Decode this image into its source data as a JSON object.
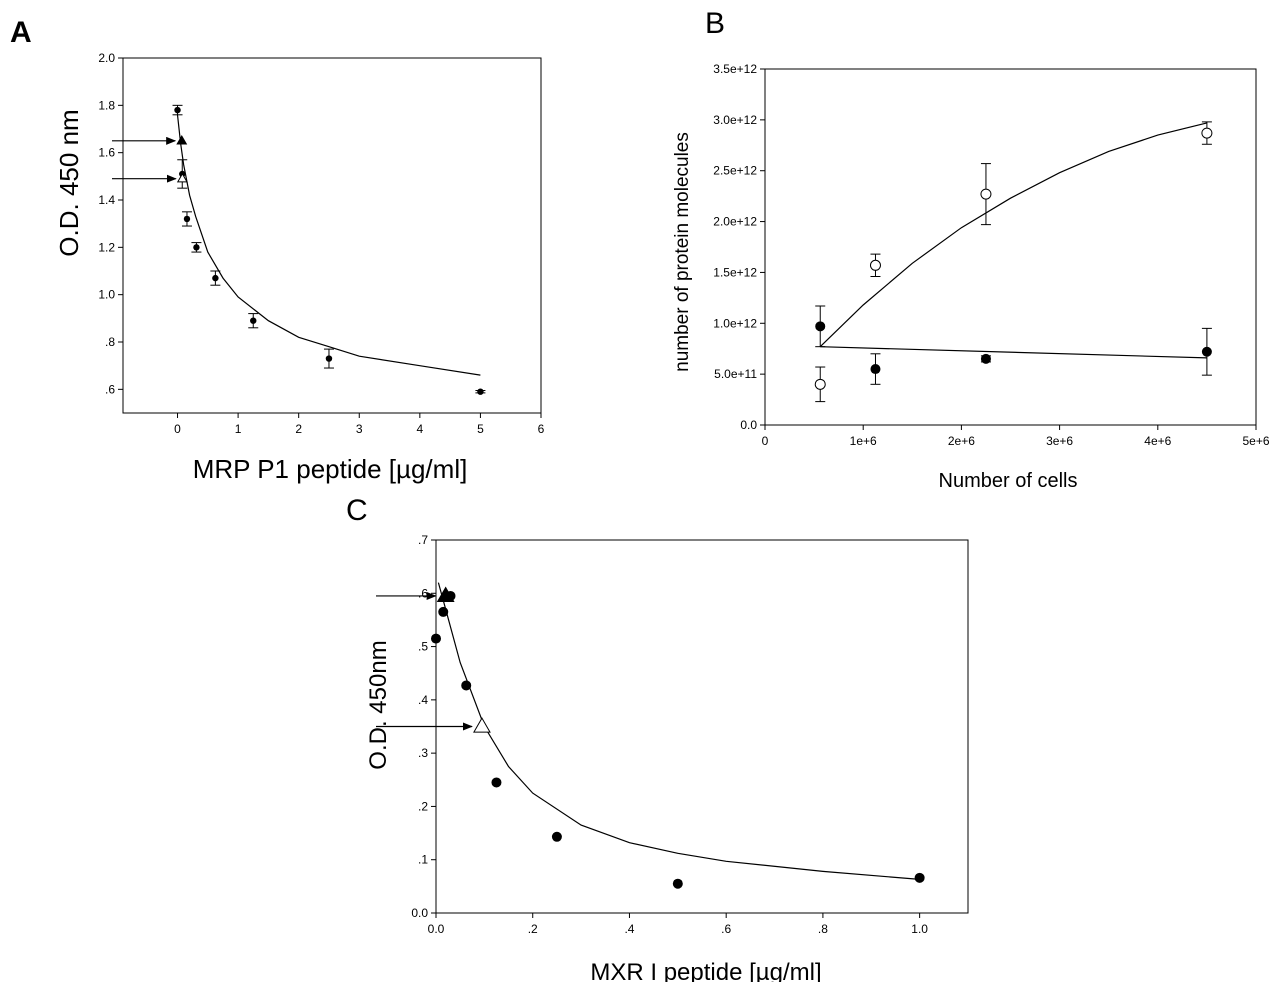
{
  "chart_data": [
    {
      "panel": "A",
      "type": "scatter",
      "xlabel": "MRP P1 peptide [µg/ml]",
      "ylabel": "O.D. 450 nm",
      "xlim": [
        -0.9,
        6
      ],
      "ylim": [
        0.5,
        2.0
      ],
      "xticks": [
        0,
        1,
        2,
        3,
        4,
        5,
        6
      ],
      "xtick_labels": [
        "0",
        "1",
        "2",
        "3",
        "4",
        "5",
        "6"
      ],
      "yticks": [
        0.6,
        0.8,
        1.0,
        1.2,
        1.4,
        1.6,
        1.8,
        2.0
      ],
      "ytick_labels": [
        ".6",
        ".8",
        "1.0",
        "1.2",
        "1.4",
        "1.6",
        "1.8",
        "2.0"
      ],
      "grid": false,
      "series": [
        {
          "marker": "filled-circle",
          "x": [
            0,
            0.078,
            0.156,
            0.312,
            0.625,
            1.25,
            2.5,
            5.0
          ],
          "y": [
            1.78,
            1.51,
            1.32,
            1.2,
            1.07,
            0.89,
            0.73,
            0.59
          ],
          "err": [
            0.02,
            0.06,
            0.03,
            0.02,
            0.03,
            0.03,
            0.04,
            0.005
          ]
        },
        {
          "marker": "filled-triangle",
          "x": [
            0.07
          ],
          "y": [
            1.65
          ],
          "arrow": true
        },
        {
          "marker": "open-triangle",
          "x": [
            0.08
          ],
          "y": [
            1.49
          ],
          "arrow": true
        }
      ],
      "fit": {
        "type": "hyperbolic-decay",
        "x": [
          0,
          0.05,
          0.1,
          0.2,
          0.3,
          0.5,
          0.75,
          1.0,
          1.5,
          2.0,
          2.5,
          3.0,
          4.0,
          5.0
        ],
        "y": [
          1.76,
          1.64,
          1.55,
          1.42,
          1.33,
          1.18,
          1.07,
          0.99,
          0.89,
          0.82,
          0.78,
          0.74,
          0.7,
          0.66
        ]
      }
    },
    {
      "panel": "B",
      "type": "scatter",
      "xlabel": "Number of cells",
      "ylabel": "number of protein molecules",
      "xlim": [
        0,
        5000000
      ],
      "ylim": [
        0,
        3500000000000
      ],
      "xticks": [
        0,
        1000000,
        2000000,
        3000000,
        4000000,
        5000000
      ],
      "xtick_labels": [
        "0",
        "1e+6",
        "2e+6",
        "3e+6",
        "4e+6",
        "5e+6"
      ],
      "yticks": [
        0,
        500000000000,
        1000000000000,
        1500000000000,
        2000000000000,
        2500000000000,
        3000000000000,
        3500000000000
      ],
      "ytick_labels": [
        "0.0",
        "5.0e+11",
        "1.0e+12",
        "1.5e+12",
        "2.0e+12",
        "2.5e+12",
        "3.0e+12",
        "3.5e+12"
      ],
      "grid": false,
      "series": [
        {
          "marker": "open-circle",
          "x": [
            562500,
            1125000,
            2250000,
            4500000
          ],
          "y": [
            400000000000,
            1570000000000,
            2270000000000,
            2870000000000
          ],
          "err": [
            170000000000,
            110000000000,
            300000000000,
            110000000000
          ],
          "fit_x": [
            562500,
            1000000,
            1500000,
            2000000,
            2500000,
            3000000,
            3500000,
            4000000,
            4500000
          ],
          "fit_y": [
            770000000000,
            1180000000000,
            1590000000000,
            1940000000000,
            2230000000000,
            2480000000000,
            2690000000000,
            2850000000000,
            2970000000000
          ]
        },
        {
          "marker": "filled-circle",
          "x": [
            562500,
            1125000,
            2250000,
            4500000
          ],
          "y": [
            970000000000,
            550000000000,
            650000000000,
            720000000000
          ],
          "err": [
            200000000000,
            150000000000,
            30000000000,
            230000000000
          ],
          "fit_x": [
            562500,
            4500000
          ],
          "fit_y": [
            770000000000,
            660000000000
          ]
        }
      ]
    },
    {
      "panel": "C",
      "type": "scatter",
      "xlabel": "MXR I peptide [µg/ml]",
      "ylabel": "O.D. 450nm",
      "xlim": [
        0,
        1.1
      ],
      "ylim": [
        0,
        0.7
      ],
      "xticks": [
        0,
        0.2,
        0.4,
        0.6,
        0.8,
        1.0
      ],
      "xtick_labels": [
        "0.0",
        ".2",
        ".4",
        ".6",
        ".8",
        "1.0"
      ],
      "yticks": [
        0,
        0.1,
        0.2,
        0.3,
        0.4,
        0.5,
        0.6,
        0.7
      ],
      "ytick_labels": [
        "0.0",
        ".1",
        ".2",
        ".3",
        ".4",
        ".5",
        ".6",
        ".7"
      ],
      "grid": false,
      "series": [
        {
          "marker": "filled-circle",
          "x": [
            0,
            0.015,
            0.03,
            0.0625,
            0.125,
            0.25,
            0.5,
            1.0
          ],
          "y": [
            0.515,
            0.565,
            0.595,
            0.427,
            0.245,
            0.143,
            0.055,
            0.066
          ]
        },
        {
          "marker": "filled-triangle",
          "x": [
            0.02
          ],
          "y": [
            0.595
          ],
          "arrow": true
        },
        {
          "marker": "open-triangle",
          "x": [
            0.095
          ],
          "y": [
            0.35
          ],
          "arrow": true
        }
      ],
      "fit": {
        "type": "hyperbolic-decay",
        "x": [
          0.005,
          0.02,
          0.05,
          0.1,
          0.15,
          0.2,
          0.3,
          0.4,
          0.5,
          0.6,
          0.8,
          1.0
        ],
        "y": [
          0.62,
          0.57,
          0.47,
          0.35,
          0.275,
          0.225,
          0.165,
          0.132,
          0.112,
          0.097,
          0.078,
          0.063
        ]
      }
    }
  ]
}
